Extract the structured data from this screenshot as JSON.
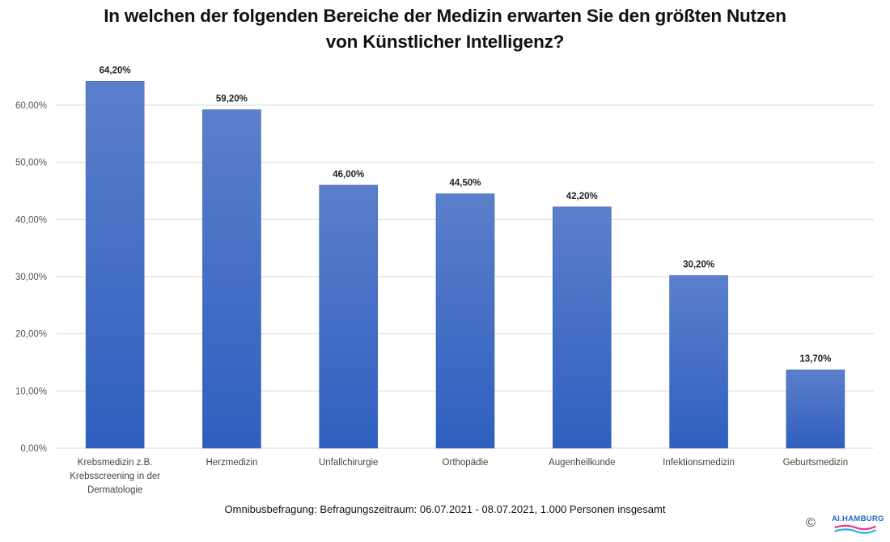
{
  "chart_data": {
    "type": "bar",
    "title": "In welchen der folgenden Bereiche der Medizin erwarten Sie den größten Nutzen von Künstlicher Intelligenz?",
    "title_lines": [
      "In welchen der folgenden Bereiche der Medizin erwarten Sie den größten Nutzen",
      "von Künstlicher Intelligenz?"
    ],
    "categories": [
      [
        "Krebsmedizin z.B.",
        "Krebsscreening in der",
        "Dermatologie"
      ],
      [
        "Herzmedizin"
      ],
      [
        "Unfallchirurgie"
      ],
      [
        "Orthopädie"
      ],
      [
        "Augenheilkunde"
      ],
      [
        "Infektionsmedizin"
      ],
      [
        "Geburtsmedizin"
      ]
    ],
    "values": [
      64.2,
      59.2,
      46.0,
      44.5,
      42.2,
      30.2,
      13.7
    ],
    "data_labels": [
      "64,20%",
      "59,20%",
      "46,00%",
      "44,50%",
      "42,20%",
      "30,20%",
      "13,70%"
    ],
    "xlabel": "",
    "ylabel": "",
    "ylim": [
      0,
      60
    ],
    "yticks": [
      0,
      10,
      20,
      30,
      40,
      50,
      60
    ],
    "ytick_labels": [
      "0,00%",
      "10,00%",
      "20,00%",
      "30,00%",
      "40,00%",
      "50,00%",
      "60,00%"
    ],
    "grid": true,
    "legend": "none",
    "bar_color_top": "#5b7fcb",
    "bar_color_bottom": "#2f5fbf"
  },
  "footnote": "Omnibusbefragung: Befragungszeitraum: 06.07.2021 - 08.07.2021, 1.000 Personen insgesamt",
  "copyright_symbol": "©",
  "logo_text": "AI.HAMBURG"
}
